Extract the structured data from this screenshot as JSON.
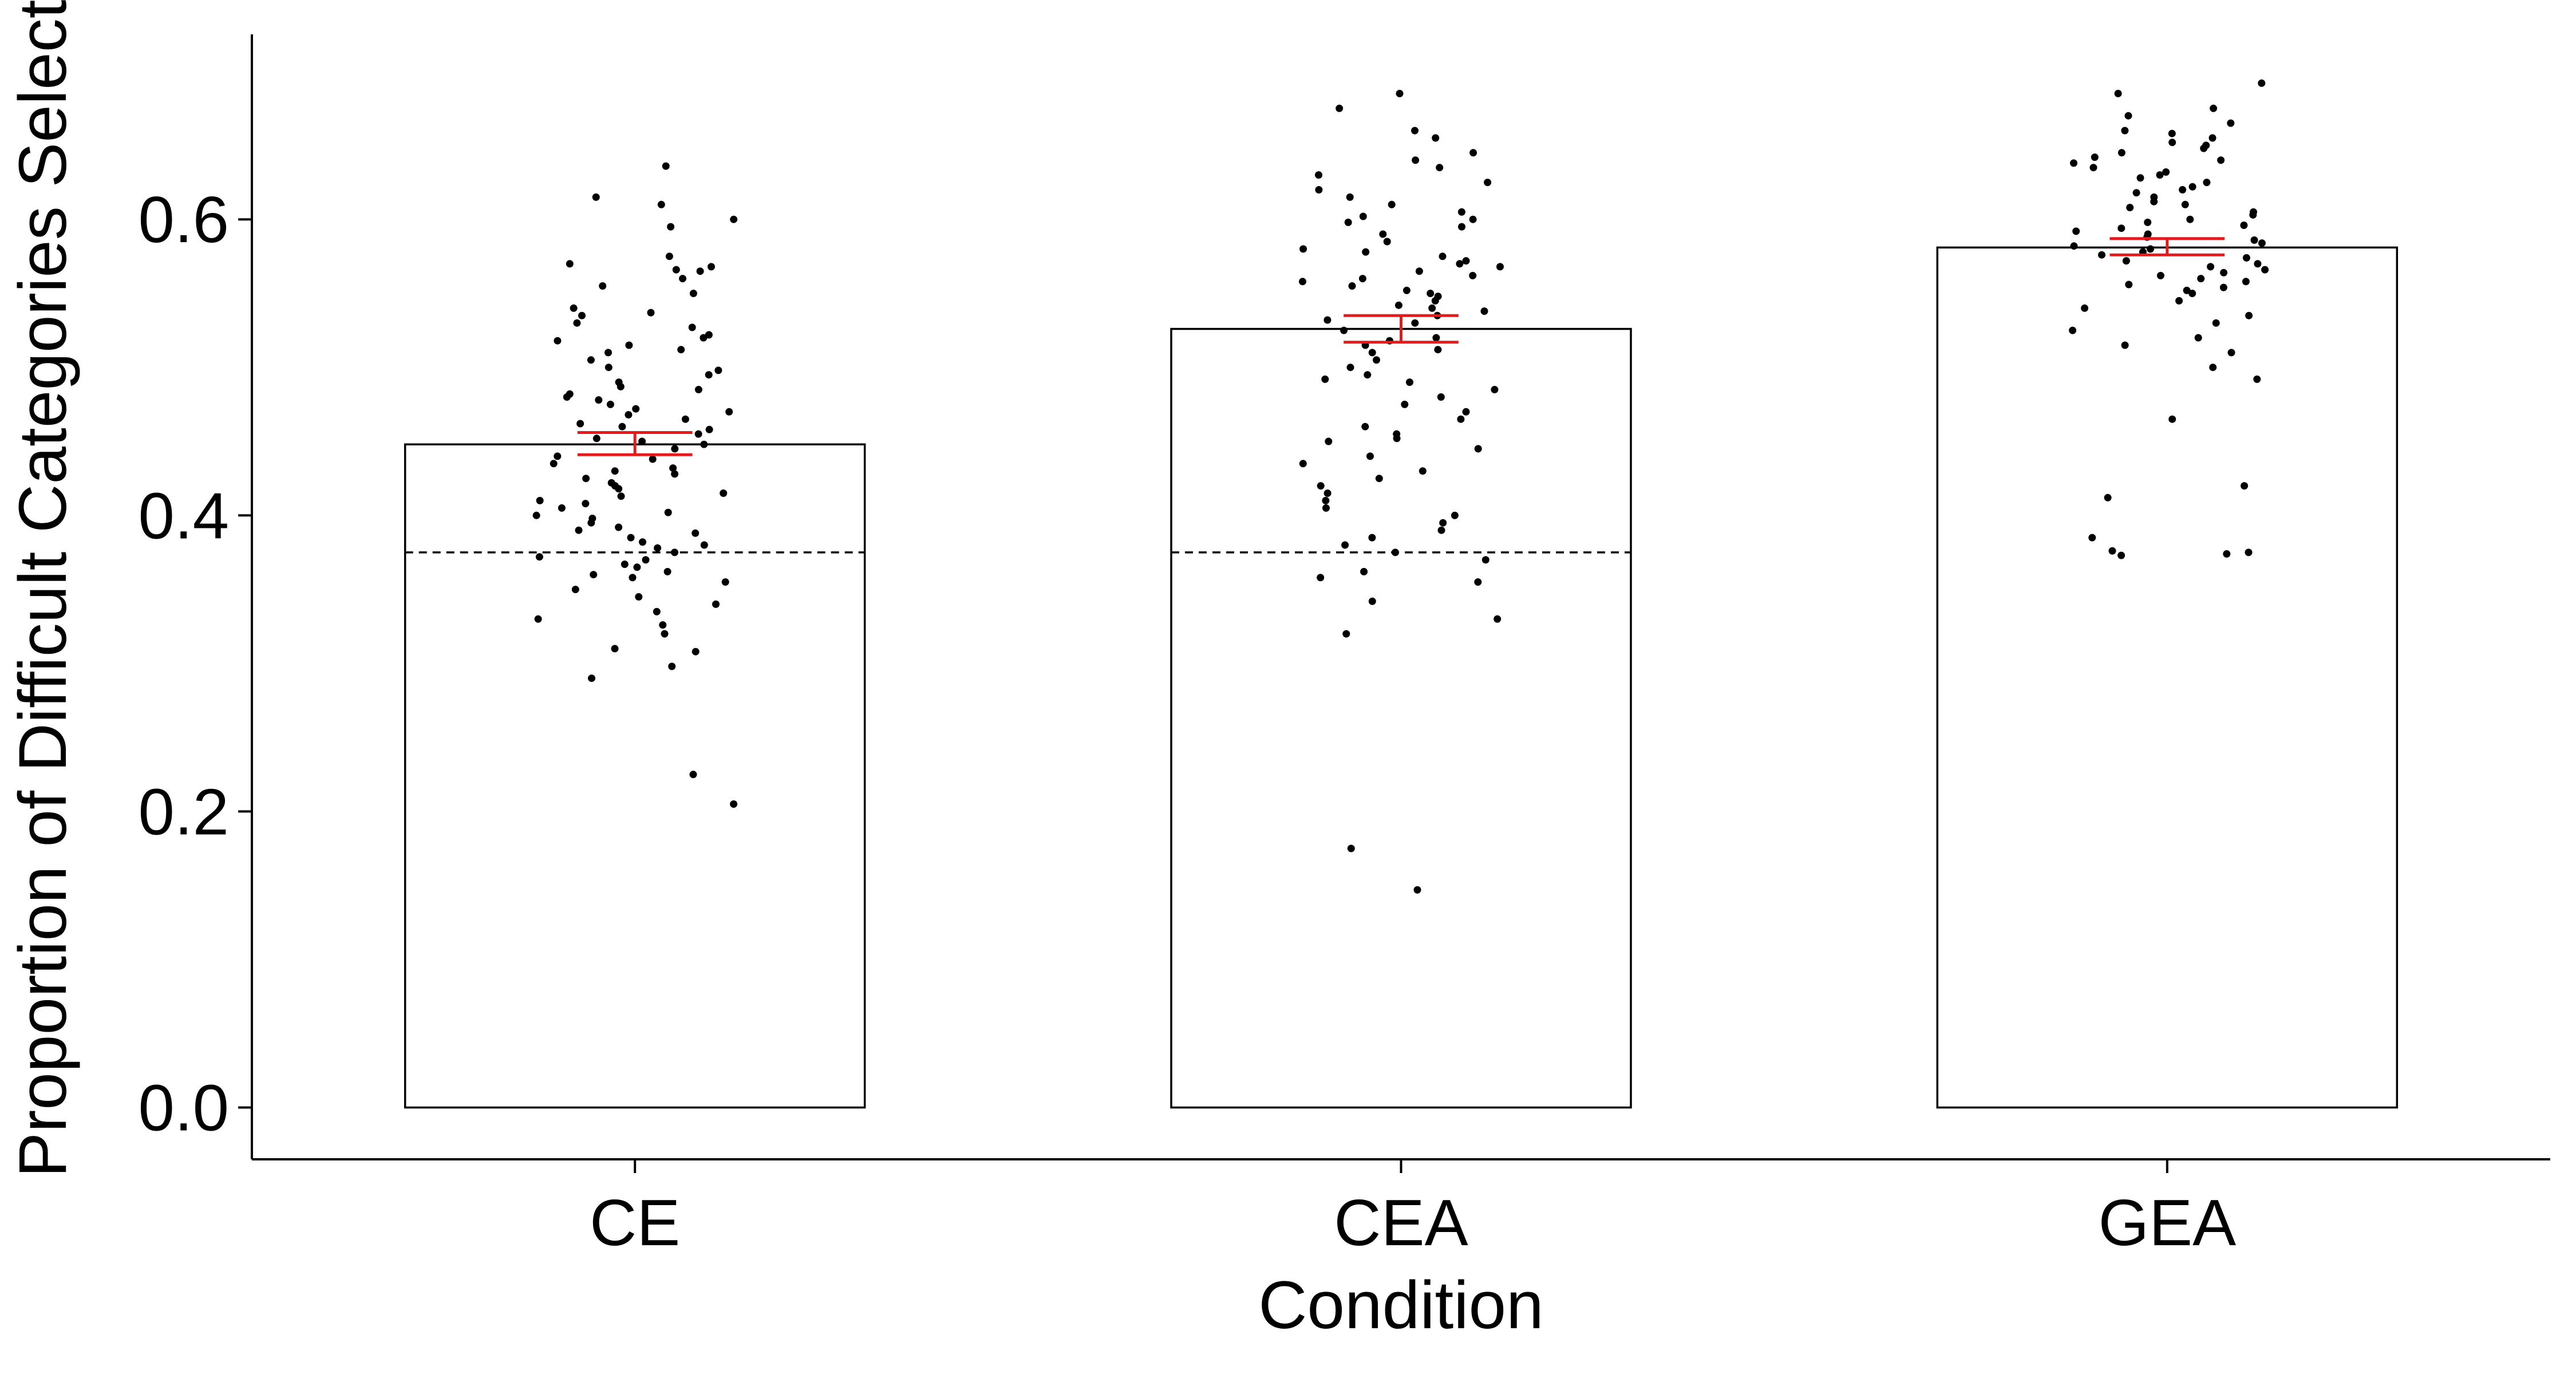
{
  "chart_data": {
    "type": "bar",
    "title": "",
    "xlabel": "Condition",
    "ylabel": "Proportion of Difficult Categories Selected",
    "categories": [
      "CE",
      "CEA",
      "GEA"
    ],
    "values": [
      0.448,
      0.526,
      0.581
    ],
    "error_bars": [
      {
        "low": 0.441,
        "high": 0.456
      },
      {
        "low": 0.517,
        "high": 0.535
      },
      {
        "low": 0.576,
        "high": 0.587
      }
    ],
    "reference_line": {
      "value": 0.375,
      "style": "dashed",
      "categories": [
        "CE",
        "CEA"
      ]
    },
    "ylim": [
      -0.035,
      0.725
    ],
    "yticks": [
      0.0,
      0.2,
      0.4,
      0.6
    ],
    "ytick_labels": [
      "0.0",
      "0.2",
      "0.4",
      "0.6"
    ],
    "grid": false,
    "legend": "none",
    "colors": {
      "bar_fill": "#ffffff",
      "bar_edge": "#000000",
      "points": "#000000",
      "error_bar": "#e41a1c",
      "reference_line": "#000000"
    },
    "points": {
      "CE": [
        0.636,
        0.615,
        0.61,
        0.6,
        0.595,
        0.575,
        0.57,
        0.568,
        0.566,
        0.565,
        0.56,
        0.555,
        0.55,
        0.54,
        0.537,
        0.535,
        0.53,
        0.527,
        0.522,
        0.52,
        0.518,
        0.515,
        0.512,
        0.51,
        0.505,
        0.5,
        0.498,
        0.495,
        0.49,
        0.487,
        0.485,
        0.482,
        0.48,
        0.478,
        0.475,
        0.472,
        0.47,
        0.468,
        0.465,
        0.462,
        0.46,
        0.458,
        0.455,
        0.452,
        0.45,
        0.448,
        0.445,
        0.44,
        0.438,
        0.435,
        0.432,
        0.43,
        0.428,
        0.425,
        0.422,
        0.42,
        0.418,
        0.415,
        0.413,
        0.41,
        0.408,
        0.405,
        0.402,
        0.4,
        0.398,
        0.395,
        0.392,
        0.39,
        0.388,
        0.385,
        0.382,
        0.38,
        0.378,
        0.375,
        0.372,
        0.37,
        0.367,
        0.365,
        0.362,
        0.36,
        0.358,
        0.355,
        0.35,
        0.345,
        0.34,
        0.335,
        0.33,
        0.326,
        0.32,
        0.31,
        0.308,
        0.298,
        0.29,
        0.225,
        0.205
      ],
      "CEA": [
        0.685,
        0.675,
        0.66,
        0.655,
        0.645,
        0.64,
        0.635,
        0.63,
        0.625,
        0.62,
        0.615,
        0.61,
        0.605,
        0.602,
        0.6,
        0.598,
        0.595,
        0.59,
        0.585,
        0.58,
        0.578,
        0.575,
        0.572,
        0.57,
        0.568,
        0.565,
        0.562,
        0.56,
        0.558,
        0.555,
        0.552,
        0.55,
        0.548,
        0.545,
        0.542,
        0.54,
        0.538,
        0.535,
        0.532,
        0.53,
        0.525,
        0.52,
        0.518,
        0.515,
        0.512,
        0.51,
        0.505,
        0.5,
        0.495,
        0.492,
        0.49,
        0.485,
        0.48,
        0.475,
        0.47,
        0.465,
        0.46,
        0.455,
        0.452,
        0.45,
        0.445,
        0.44,
        0.435,
        0.43,
        0.425,
        0.42,
        0.415,
        0.41,
        0.405,
        0.4,
        0.395,
        0.39,
        0.385,
        0.38,
        0.375,
        0.37,
        0.362,
        0.358,
        0.355,
        0.342,
        0.33,
        0.32,
        0.175,
        0.147
      ],
      "GEA": [
        0.692,
        0.685,
        0.675,
        0.67,
        0.665,
        0.66,
        0.658,
        0.655,
        0.652,
        0.65,
        0.648,
        0.645,
        0.642,
        0.64,
        0.638,
        0.635,
        0.632,
        0.63,
        0.628,
        0.625,
        0.622,
        0.62,
        0.618,
        0.615,
        0.612,
        0.61,
        0.608,
        0.605,
        0.603,
        0.6,
        0.598,
        0.596,
        0.594,
        0.592,
        0.59,
        0.588,
        0.586,
        0.584,
        0.582,
        0.58,
        0.578,
        0.576,
        0.574,
        0.572,
        0.57,
        0.568,
        0.566,
        0.564,
        0.562,
        0.56,
        0.558,
        0.556,
        0.554,
        0.552,
        0.55,
        0.545,
        0.54,
        0.535,
        0.53,
        0.525,
        0.52,
        0.515,
        0.51,
        0.5,
        0.492,
        0.465,
        0.42,
        0.412,
        0.385,
        0.376,
        0.375,
        0.374,
        0.373
      ]
    }
  }
}
